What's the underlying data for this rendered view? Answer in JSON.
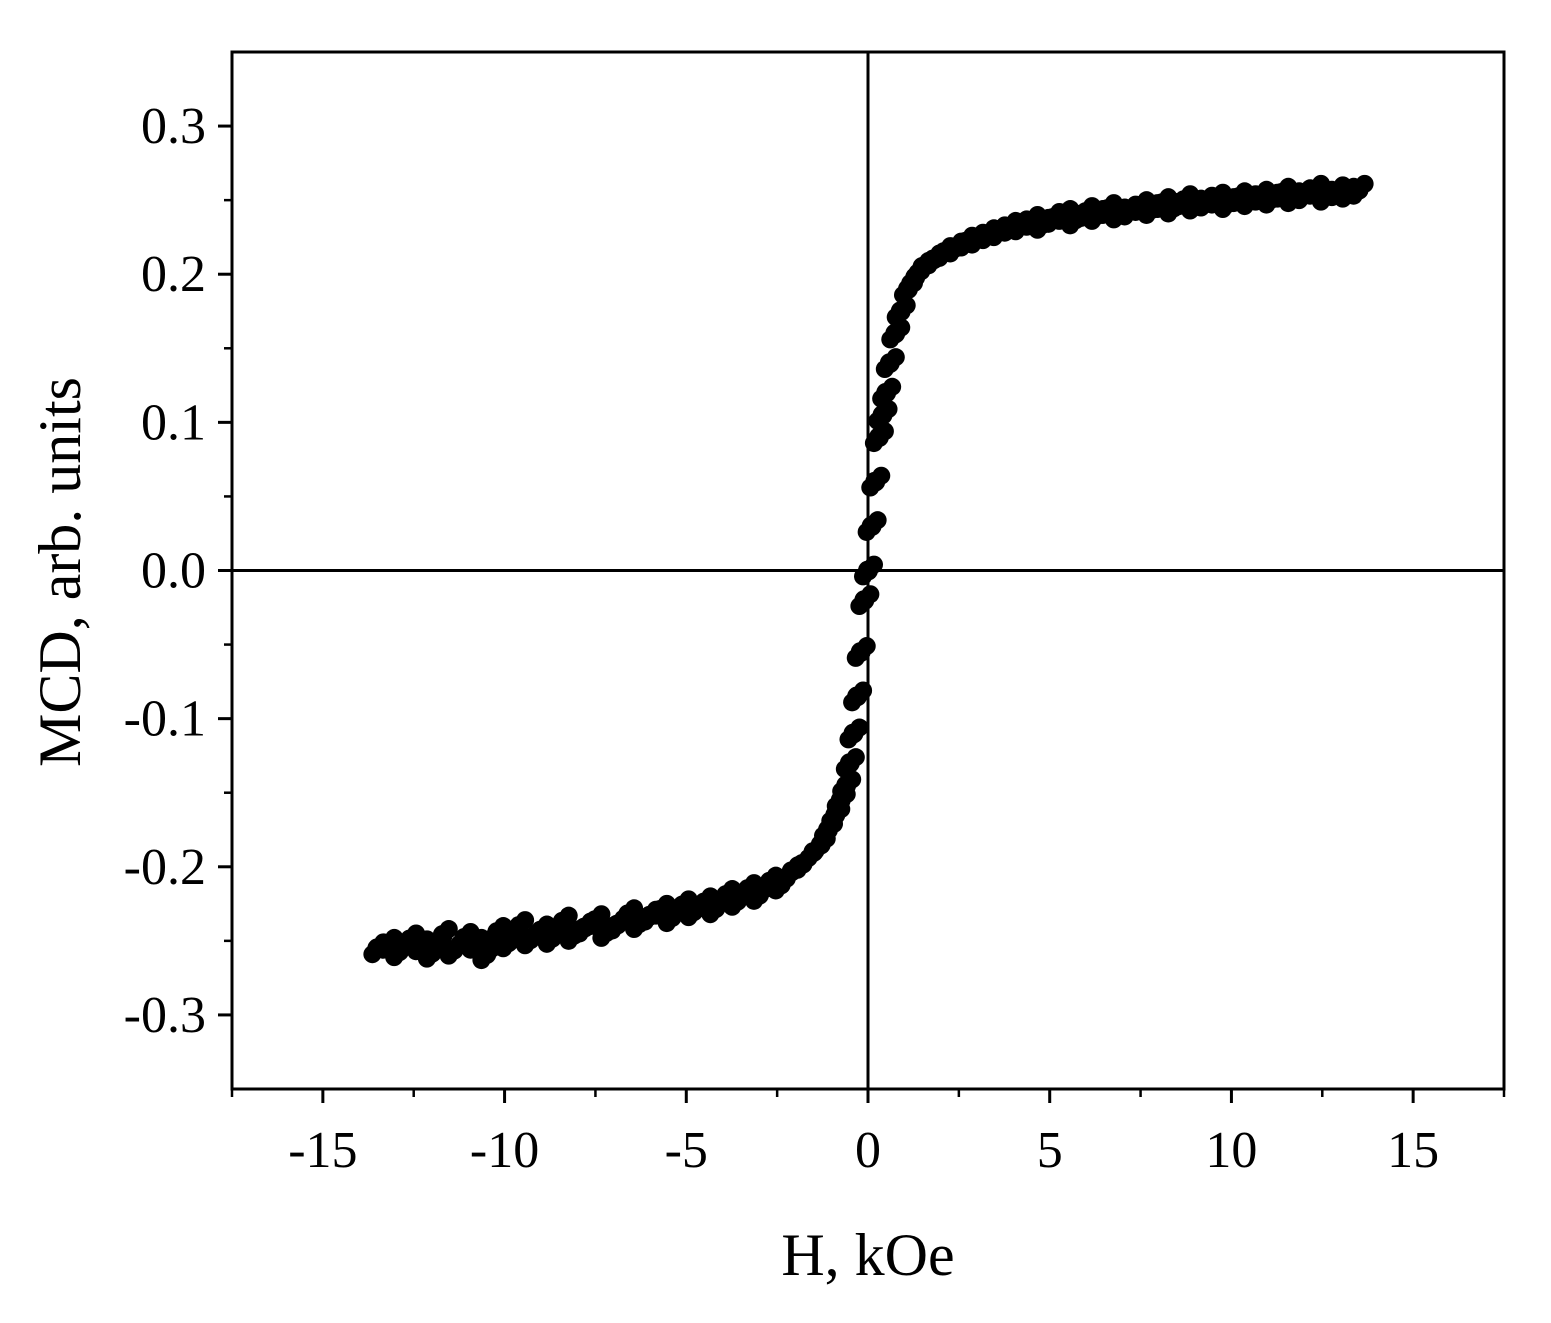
{
  "chart_data": {
    "type": "scatter",
    "title": "",
    "xlabel": "H, kOe",
    "ylabel": "MCD, arb. units",
    "xlim": [
      -17.5,
      17.5
    ],
    "ylim": [
      -0.35,
      0.35
    ],
    "xticks": [
      -15,
      -10,
      -5,
      0,
      5,
      10,
      15
    ],
    "xtick_labels": [
      "-15",
      "-10",
      "-5",
      "0",
      "5",
      "10",
      "15"
    ],
    "yticks": [
      -0.3,
      -0.2,
      -0.1,
      0.0,
      0.1,
      0.2,
      0.3
    ],
    "ytick_labels": [
      "-0.3",
      "-0.2",
      "-0.1",
      "0.0",
      "0.1",
      "0.2",
      "0.3"
    ],
    "grid": false,
    "zero_lines": true,
    "marker_color": "#000000",
    "series": [
      {
        "x": [
          -13.5,
          -13.2,
          -12.9,
          -12.6,
          -12.3,
          -12.0,
          -11.7,
          -11.4,
          -11.1,
          -10.8,
          -10.5,
          -10.2,
          -9.9,
          -9.6,
          -9.3,
          -9.0,
          -8.7,
          -8.4,
          -8.1,
          -7.8,
          -7.5,
          -7.2,
          -6.9,
          -6.6,
          -6.3,
          -6.0,
          -5.7,
          -5.4,
          -5.1,
          -4.8,
          -4.5,
          -4.2,
          -3.9,
          -3.6,
          -3.3,
          -3.0,
          -2.7,
          -2.4,
          -2.1,
          -1.8,
          -1.5,
          -1.3,
          -1.1,
          -0.9,
          -0.75,
          -0.6,
          -0.5,
          -0.4,
          -0.3,
          -0.2,
          -0.1,
          0.0,
          0.1,
          0.2,
          0.3,
          0.4,
          0.5,
          0.6,
          0.75,
          0.9,
          1.1,
          1.3,
          1.5,
          1.8,
          2.1,
          2.4,
          2.7,
          3.0,
          3.3,
          3.6,
          3.9,
          4.2,
          4.5,
          4.8,
          5.1,
          5.4,
          5.7,
          6.0,
          6.3,
          6.6,
          6.9,
          7.2,
          7.5,
          7.8,
          8.1,
          8.4,
          8.7,
          9.0,
          9.3,
          9.6,
          9.9,
          10.2,
          10.5,
          10.8,
          11.1,
          11.4,
          11.7,
          12.0,
          12.3,
          12.6,
          12.9,
          13.2,
          13.5
        ],
        "y": [
          -0.255,
          -0.252,
          -0.257,
          -0.249,
          -0.253,
          -0.258,
          -0.246,
          -0.256,
          -0.248,
          -0.252,
          -0.259,
          -0.244,
          -0.251,
          -0.24,
          -0.249,
          -0.243,
          -0.248,
          -0.237,
          -0.246,
          -0.241,
          -0.236,
          -0.244,
          -0.239,
          -0.232,
          -0.238,
          -0.233,
          -0.229,
          -0.234,
          -0.226,
          -0.23,
          -0.224,
          -0.228,
          -0.219,
          -0.223,
          -0.215,
          -0.219,
          -0.21,
          -0.212,
          -0.203,
          -0.198,
          -0.19,
          -0.185,
          -0.175,
          -0.165,
          -0.155,
          -0.145,
          -0.13,
          -0.11,
          -0.085,
          -0.055,
          -0.02,
          0.0,
          0.03,
          0.06,
          0.09,
          0.105,
          0.12,
          0.14,
          0.16,
          0.175,
          0.19,
          0.198,
          0.205,
          0.21,
          0.215,
          0.218,
          0.222,
          0.224,
          0.227,
          0.229,
          0.232,
          0.233,
          0.236,
          0.234,
          0.238,
          0.24,
          0.237,
          0.242,
          0.24,
          0.244,
          0.241,
          0.243,
          0.246,
          0.244,
          0.248,
          0.245,
          0.25,
          0.247,
          0.249,
          0.251,
          0.248,
          0.252,
          0.25,
          0.253,
          0.251,
          0.255,
          0.252,
          0.254,
          0.257,
          0.253,
          0.256,
          0.255,
          0.257
        ]
      }
    ]
  }
}
